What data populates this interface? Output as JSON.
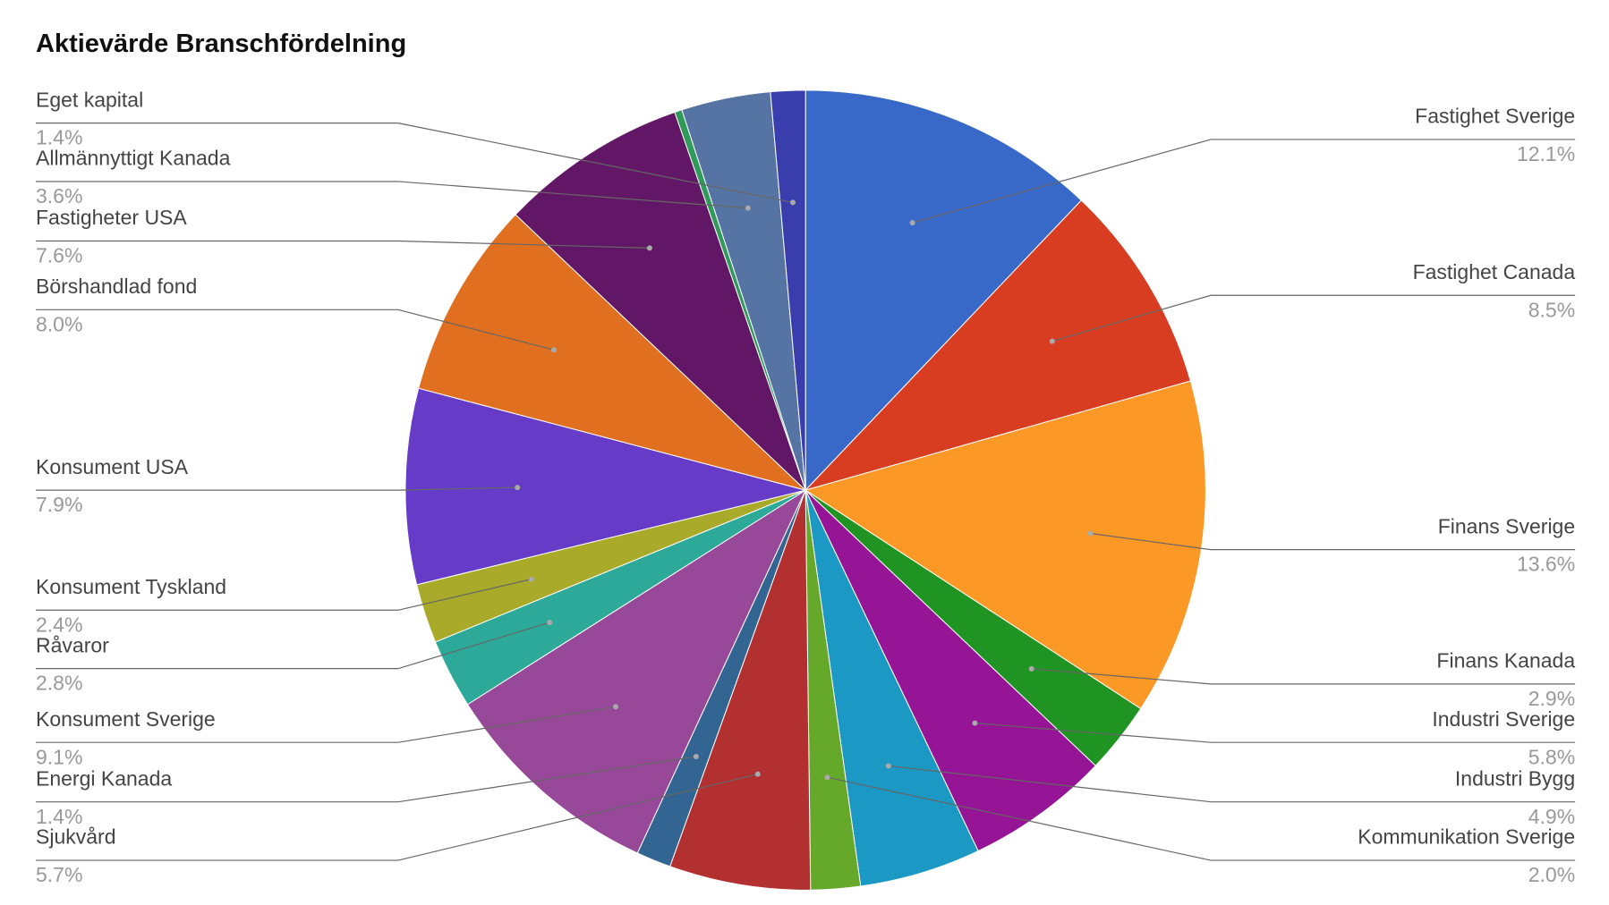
{
  "chart_data": {
    "type": "pie",
    "title": "Aktievärde Branschfördelning",
    "categories": [
      "Fastighet Sverige",
      "Fastighet Canada",
      "Finans Sverige",
      "Finans Kanada",
      "Industri Sverige",
      "Industri Bygg",
      "Kommunikation Sverige",
      "Sjukvård",
      "Energi Kanada",
      "Konsument Sverige",
      "Råvaror",
      "Konsument Tyskland",
      "Konsument USA",
      "Börshandlad fond",
      "Fastigheter USA",
      null,
      "Allmännyttigt Kanada",
      "Eget kapital"
    ],
    "values": [
      12.1,
      8.5,
      13.6,
      2.9,
      5.8,
      4.9,
      2.0,
      5.7,
      1.4,
      9.1,
      2.8,
      2.4,
      7.9,
      8.0,
      7.6,
      0.3,
      3.6,
      1.4
    ],
    "value_labels": [
      "12.1%",
      "8.5%",
      "13.6%",
      "2.9%",
      "5.8%",
      "4.9%",
      "2.0%",
      "5.7%",
      "1.4%",
      "9.1%",
      "2.8%",
      "2.4%",
      "7.9%",
      "8.0%",
      "7.6%",
      null,
      "3.6%",
      "1.4%"
    ],
    "colors": [
      "#3869c9",
      "#d93d21",
      "#fc9826",
      "#209423",
      "#951596",
      "#1b98c4",
      "#66a829",
      "#b33030",
      "#336593",
      "#984898",
      "#2ca999",
      "#aaaa2a",
      "#653bc8",
      "#e07020",
      "#621766",
      "#2f9a5a",
      "#5574a4",
      "#3a3eac"
    ]
  }
}
